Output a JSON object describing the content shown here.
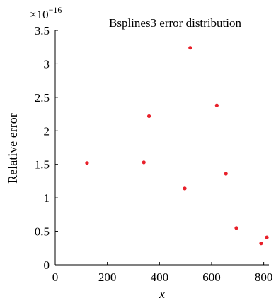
{
  "chart_data": {
    "type": "scatter",
    "title": "Bsplines3 error distribution",
    "xlabel": "x",
    "ylabel": "Relative error",
    "y_scale_label": "×10",
    "y_scale_exponent": "−16",
    "xlim": [
      0,
      820
    ],
    "ylim": [
      0,
      3.5
    ],
    "x_ticks": [
      0,
      200,
      400,
      600,
      800
    ],
    "y_ticks": [
      0,
      0.5,
      1,
      1.5,
      2,
      2.5,
      3,
      3.5
    ],
    "x_tick_labels": [
      "0",
      "200",
      "400",
      "600",
      "800"
    ],
    "y_tick_labels": [
      "0",
      "0.5",
      "1",
      "1.5",
      "2",
      "2.5",
      "3",
      "3.5"
    ],
    "grid": false,
    "marker_color": "#e8202a",
    "points": [
      {
        "x": 122,
        "y": 1.52
      },
      {
        "x": 340,
        "y": 1.53
      },
      {
        "x": 360,
        "y": 2.22
      },
      {
        "x": 497,
        "y": 1.14
      },
      {
        "x": 518,
        "y": 3.24
      },
      {
        "x": 620,
        "y": 2.38
      },
      {
        "x": 655,
        "y": 1.36
      },
      {
        "x": 695,
        "y": 0.55
      },
      {
        "x": 790,
        "y": 0.32
      },
      {
        "x": 812,
        "y": 0.41
      }
    ]
  }
}
